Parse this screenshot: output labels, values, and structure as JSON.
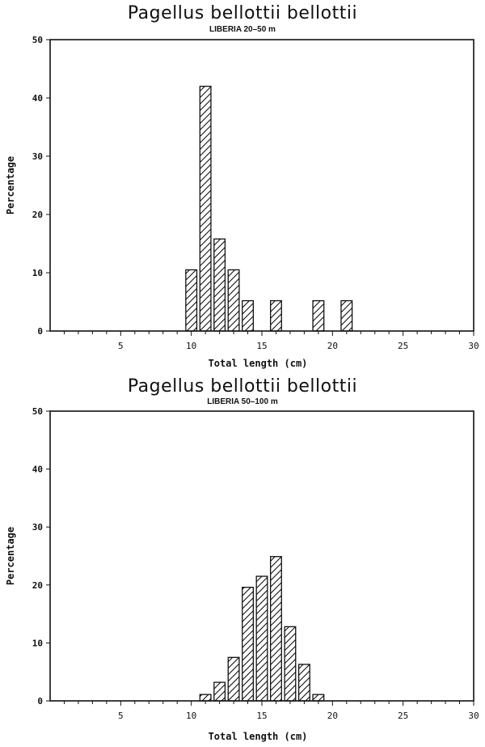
{
  "chart_data": [
    {
      "type": "bar",
      "title": "Pagellus bellottii bellottii",
      "subtitle": "LIBERIA  20–50 m",
      "xlabel": "Total length (cm)",
      "ylabel": "Percentage",
      "xlim": [
        0,
        30
      ],
      "ylim": [
        0,
        50
      ],
      "xticks": [
        5,
        10,
        15,
        20,
        25,
        30
      ],
      "yticks": [
        0,
        10,
        20,
        30,
        40,
        50
      ],
      "x": [
        10,
        11,
        12,
        13,
        14,
        16,
        19,
        21
      ],
      "values": [
        10.5,
        42,
        15.8,
        10.5,
        5.2,
        5.2,
        5.2,
        5.2
      ],
      "grid": false,
      "bar_fill": "diagonal-hatch"
    },
    {
      "type": "bar",
      "title": "Pagellus bellottii bellottii",
      "subtitle": "LIBERIA  50–100 m",
      "xlabel": "Total length (cm)",
      "ylabel": "Percentage",
      "xlim": [
        0,
        30
      ],
      "ylim": [
        0,
        50
      ],
      "xticks": [
        5,
        10,
        15,
        20,
        25,
        30
      ],
      "yticks": [
        0,
        10,
        20,
        30,
        40,
        50
      ],
      "x": [
        11,
        12,
        13,
        14,
        15,
        16,
        17,
        18,
        19
      ],
      "values": [
        1.1,
        3.2,
        7.5,
        19.6,
        21.5,
        24.9,
        12.8,
        6.3,
        1.1
      ],
      "grid": false,
      "bar_fill": "diagonal-hatch"
    }
  ]
}
